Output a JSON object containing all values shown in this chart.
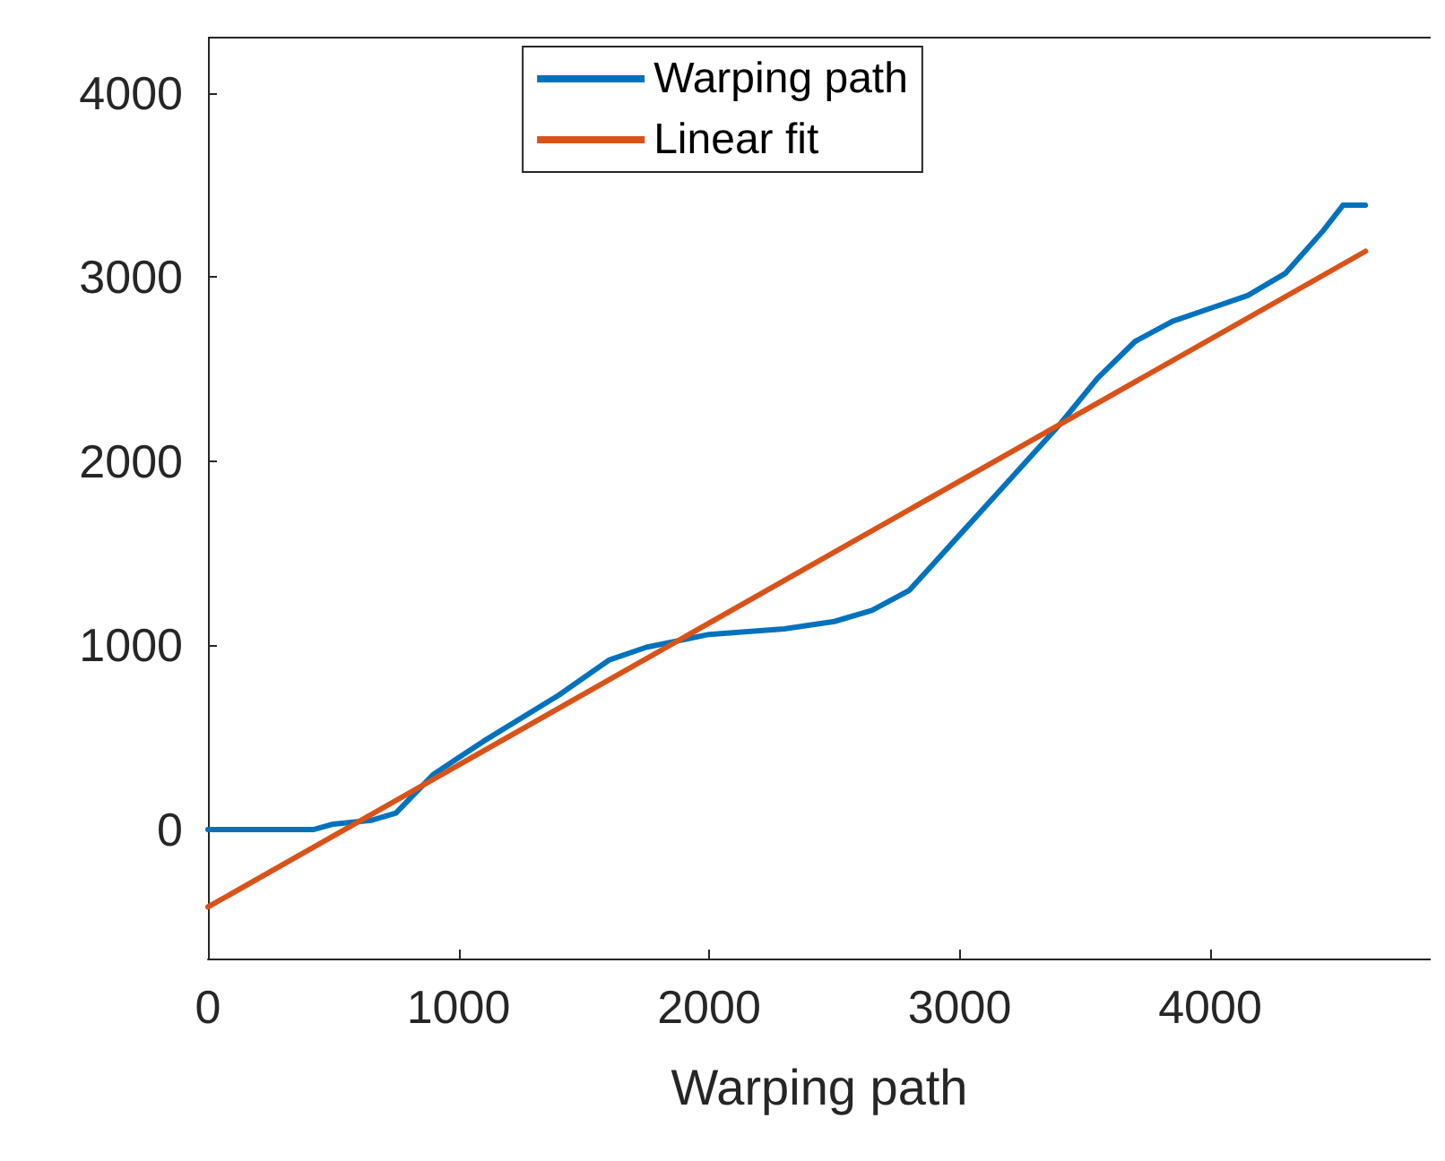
{
  "chart_data": {
    "type": "line",
    "xlabel": "Warping path",
    "xlim": [
      0,
      4880
    ],
    "xticks": [
      0,
      1000,
      2000,
      3000,
      4000
    ],
    "ylim": [
      -700,
      4300
    ],
    "yticks": [
      0,
      1000,
      2000,
      3000,
      4000
    ],
    "grid": false,
    "legend": "top",
    "marker": "none",
    "line_style": "solid",
    "series": [
      {
        "name": "Warping path",
        "color": "#0072bd",
        "x": [
          0,
          420,
          500,
          650,
          750,
          900,
          1100,
          1400,
          1600,
          1750,
          2000,
          2300,
          2500,
          2650,
          2800,
          2900,
          3000,
          3200,
          3400,
          3550,
          3700,
          3850,
          4000,
          4150,
          4300,
          4450,
          4530,
          4620
        ],
        "values": [
          0,
          0,
          30,
          50,
          90,
          300,
          480,
          730,
          920,
          990,
          1060,
          1090,
          1130,
          1190,
          1300,
          1450,
          1600,
          1900,
          2200,
          2450,
          2650,
          2760,
          2830,
          2900,
          3020,
          3250,
          3390,
          3390
        ]
      },
      {
        "name": "Linear fit",
        "color": "#d95319",
        "x": [
          0,
          4620
        ],
        "values": [
          -420,
          3140
        ]
      }
    ]
  }
}
